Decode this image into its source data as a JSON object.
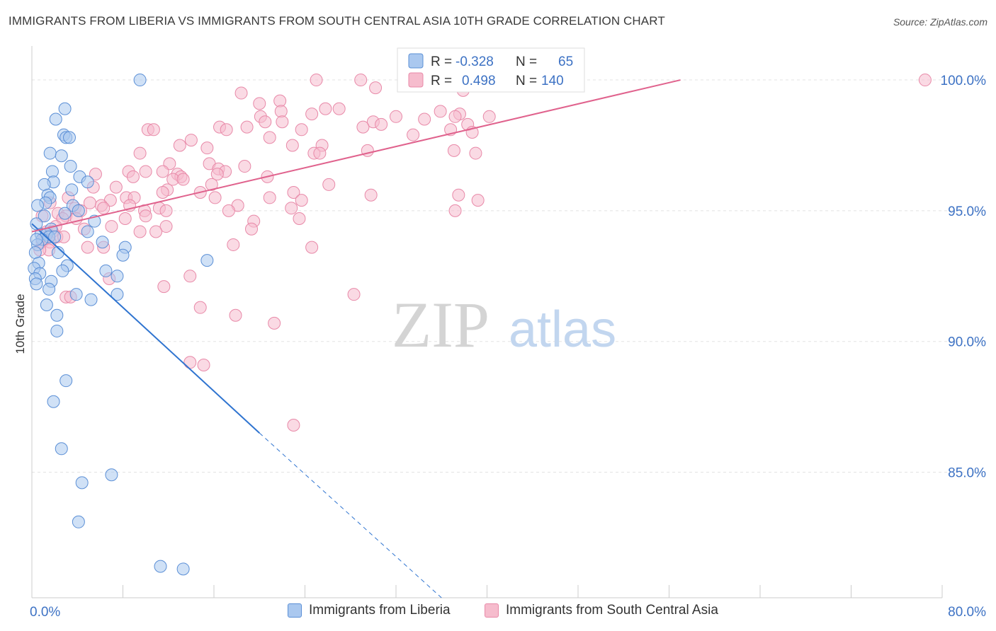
{
  "header": {
    "title": "IMMIGRANTS FROM LIBERIA VS IMMIGRANTS FROM SOUTH CENTRAL ASIA 10TH GRADE CORRELATION CHART",
    "source": "Source: ZipAtlas.com"
  },
  "watermark": {
    "zip": "ZIP",
    "atlas": "atlas"
  },
  "legend_top": {
    "rows": [
      {
        "r_label": "R =",
        "r_value": "-0.328",
        "n_label": "N =",
        "n_value": "65"
      },
      {
        "r_label": "R =",
        "r_value": "0.498",
        "n_label": "N =",
        "n_value": "140"
      }
    ]
  },
  "legend_bottom": {
    "items": [
      "Immigrants from Liberia",
      "Immigrants from South Central Asia"
    ]
  },
  "colors": {
    "liberia_fill": "#aac8ef",
    "liberia_stroke": "#5b8fd6",
    "liberia_line": "#2f74d0",
    "asia_fill": "#f6bccd",
    "asia_stroke": "#e889a8",
    "asia_line": "#e0628d",
    "axis_text": "#3d72c4",
    "grid": "#e3e3e3"
  },
  "chart_data": {
    "type": "scatter",
    "title": "IMMIGRANTS FROM LIBERIA VS IMMIGRANTS FROM SOUTH CENTRAL ASIA 10TH GRADE CORRELATION CHART",
    "xlabel": "",
    "ylabel": "10th Grade",
    "xlim": [
      0,
      80
    ],
    "ylim": [
      80.2,
      101.3
    ],
    "x_tick_labels": [
      "0.0%",
      "80.0%"
    ],
    "y_ticks": [
      85,
      90,
      95,
      100
    ],
    "y_tick_labels": [
      "85.0%",
      "90.0%",
      "95.0%",
      "100.0%"
    ],
    "grid": true,
    "legend_position": "top-center",
    "series": [
      {
        "name": "Immigrants from Liberia",
        "r": -0.328,
        "n": 65,
        "trend": {
          "x": [
            0,
            20
          ],
          "y": [
            94.5,
            86.5
          ],
          "dashed_to": [
            36,
            80.2
          ]
        },
        "points": [
          [
            9.5,
            100.0
          ],
          [
            2.9,
            98.9
          ],
          [
            2.1,
            98.5
          ],
          [
            2.8,
            97.9
          ],
          [
            3.0,
            97.8
          ],
          [
            3.3,
            97.8
          ],
          [
            1.6,
            97.2
          ],
          [
            2.6,
            97.1
          ],
          [
            3.4,
            96.7
          ],
          [
            1.8,
            96.5
          ],
          [
            4.2,
            96.3
          ],
          [
            1.9,
            96.1
          ],
          [
            4.9,
            96.1
          ],
          [
            1.1,
            96.0
          ],
          [
            3.5,
            95.8
          ],
          [
            1.4,
            95.6
          ],
          [
            1.6,
            95.5
          ],
          [
            1.2,
            95.3
          ],
          [
            0.5,
            95.2
          ],
          [
            3.6,
            95.2
          ],
          [
            4.1,
            95.0
          ],
          [
            2.9,
            94.9
          ],
          [
            1.1,
            94.8
          ],
          [
            5.5,
            94.6
          ],
          [
            0.4,
            94.5
          ],
          [
            1.7,
            94.3
          ],
          [
            4.9,
            94.2
          ],
          [
            0.8,
            94.1
          ],
          [
            1.3,
            94.1
          ],
          [
            1.5,
            94.0
          ],
          [
            2.0,
            94.0
          ],
          [
            0.9,
            93.9
          ],
          [
            6.2,
            93.8
          ],
          [
            0.5,
            93.7
          ],
          [
            8.2,
            93.6
          ],
          [
            0.3,
            93.4
          ],
          [
            2.3,
            93.4
          ],
          [
            8.0,
            93.3
          ],
          [
            15.4,
            93.1
          ],
          [
            0.6,
            93.0
          ],
          [
            3.1,
            92.9
          ],
          [
            0.2,
            92.8
          ],
          [
            2.7,
            92.7
          ],
          [
            6.5,
            92.7
          ],
          [
            0.7,
            92.6
          ],
          [
            7.5,
            92.5
          ],
          [
            0.3,
            92.4
          ],
          [
            1.7,
            92.3
          ],
          [
            0.4,
            92.2
          ],
          [
            1.5,
            92.0
          ],
          [
            3.9,
            91.8
          ],
          [
            7.5,
            91.8
          ],
          [
            5.2,
            91.6
          ],
          [
            1.3,
            91.4
          ],
          [
            2.2,
            91.0
          ],
          [
            2.2,
            90.4
          ],
          [
            3.0,
            88.5
          ],
          [
            1.9,
            87.7
          ],
          [
            2.6,
            85.9
          ],
          [
            7.0,
            84.9
          ],
          [
            4.4,
            84.6
          ],
          [
            4.1,
            83.1
          ],
          [
            11.3,
            81.4
          ],
          [
            13.3,
            81.3
          ],
          [
            0.4,
            93.9
          ]
        ]
      },
      {
        "name": "Immigrants from South Central Asia",
        "r": 0.498,
        "n": 140,
        "trend": {
          "x": [
            0,
            57
          ],
          "y": [
            94.2,
            100.0
          ]
        },
        "points": [
          [
            25.0,
            100.0
          ],
          [
            28.9,
            100.0
          ],
          [
            33.7,
            100.0
          ],
          [
            36.1,
            100.0
          ],
          [
            41.6,
            100.0
          ],
          [
            43.8,
            100.0
          ],
          [
            78.5,
            100.0
          ],
          [
            36.3,
            99.8
          ],
          [
            30.2,
            99.7
          ],
          [
            37.9,
            99.6
          ],
          [
            18.4,
            99.5
          ],
          [
            21.8,
            99.2
          ],
          [
            20.0,
            99.1
          ],
          [
            25.8,
            98.9
          ],
          [
            27.0,
            98.9
          ],
          [
            21.9,
            98.8
          ],
          [
            35.9,
            98.8
          ],
          [
            24.6,
            98.7
          ],
          [
            37.6,
            98.7
          ],
          [
            20.1,
            98.6
          ],
          [
            32.0,
            98.6
          ],
          [
            37.2,
            98.6
          ],
          [
            40.2,
            98.6
          ],
          [
            34.5,
            98.5
          ],
          [
            20.5,
            98.4
          ],
          [
            22.0,
            98.4
          ],
          [
            30.0,
            98.4
          ],
          [
            38.3,
            98.3
          ],
          [
            30.7,
            98.3
          ],
          [
            29.1,
            98.2
          ],
          [
            16.5,
            98.2
          ],
          [
            18.9,
            98.2
          ],
          [
            17.1,
            98.1
          ],
          [
            10.2,
            98.1
          ],
          [
            10.7,
            98.1
          ],
          [
            23.7,
            98.1
          ],
          [
            36.8,
            98.1
          ],
          [
            38.7,
            98.0
          ],
          [
            33.5,
            97.9
          ],
          [
            20.9,
            97.8
          ],
          [
            14.0,
            97.7
          ],
          [
            22.9,
            97.5
          ],
          [
            13.0,
            97.5
          ],
          [
            25.5,
            97.5
          ],
          [
            15.4,
            97.4
          ],
          [
            37.1,
            97.3
          ],
          [
            29.5,
            97.3
          ],
          [
            39.0,
            97.2
          ],
          [
            24.8,
            97.2
          ],
          [
            9.5,
            97.2
          ],
          [
            25.3,
            97.2
          ],
          [
            12.1,
            96.8
          ],
          [
            15.6,
            96.8
          ],
          [
            18.7,
            96.7
          ],
          [
            16.4,
            96.6
          ],
          [
            17.0,
            96.5
          ],
          [
            10.0,
            96.5
          ],
          [
            11.5,
            96.5
          ],
          [
            8.5,
            96.5
          ],
          [
            16.3,
            96.4
          ],
          [
            12.8,
            96.4
          ],
          [
            5.6,
            96.4
          ],
          [
            13.1,
            96.3
          ],
          [
            8.9,
            96.3
          ],
          [
            20.7,
            96.3
          ],
          [
            12.4,
            96.2
          ],
          [
            13.3,
            96.2
          ],
          [
            15.8,
            96.0
          ],
          [
            26.1,
            96.0
          ],
          [
            5.4,
            95.9
          ],
          [
            7.4,
            95.9
          ],
          [
            11.9,
            95.8
          ],
          [
            11.5,
            95.7
          ],
          [
            14.8,
            95.7
          ],
          [
            23.0,
            95.7
          ],
          [
            29.8,
            95.6
          ],
          [
            37.5,
            95.6
          ],
          [
            20.9,
            95.5
          ],
          [
            8.3,
            95.5
          ],
          [
            9.0,
            95.5
          ],
          [
            16.1,
            95.5
          ],
          [
            3.2,
            95.5
          ],
          [
            6.9,
            95.4
          ],
          [
            23.7,
            95.4
          ],
          [
            39.2,
            95.4
          ],
          [
            1.6,
            95.3
          ],
          [
            5.1,
            95.3
          ],
          [
            6.1,
            95.2
          ],
          [
            18.1,
            95.2
          ],
          [
            8.6,
            95.2
          ],
          [
            22.8,
            95.1
          ],
          [
            3.8,
            95.1
          ],
          [
            6.3,
            95.1
          ],
          [
            11.2,
            95.1
          ],
          [
            11.8,
            95.0
          ],
          [
            4.3,
            95.0
          ],
          [
            9.9,
            95.0
          ],
          [
            37.2,
            95.0
          ],
          [
            17.3,
            95.0
          ],
          [
            2.3,
            94.9
          ],
          [
            0.9,
            94.8
          ],
          [
            3.0,
            94.8
          ],
          [
            10.0,
            94.8
          ],
          [
            3.9,
            94.7
          ],
          [
            23.5,
            94.7
          ],
          [
            2.7,
            94.7
          ],
          [
            8.2,
            94.7
          ],
          [
            19.5,
            94.6
          ],
          [
            11.8,
            94.4
          ],
          [
            7.0,
            94.4
          ],
          [
            2.1,
            94.4
          ],
          [
            1.3,
            94.2
          ],
          [
            19.3,
            94.3
          ],
          [
            4.6,
            94.3
          ],
          [
            1.8,
            94.2
          ],
          [
            9.5,
            94.2
          ],
          [
            10.9,
            94.2
          ],
          [
            1.3,
            94.0
          ],
          [
            2.2,
            94.0
          ],
          [
            2.8,
            94.0
          ],
          [
            1.0,
            93.9
          ],
          [
            0.9,
            93.8
          ],
          [
            1.6,
            93.8
          ],
          [
            24.6,
            93.6
          ],
          [
            6.3,
            93.6
          ],
          [
            17.7,
            93.7
          ],
          [
            4.9,
            93.6
          ],
          [
            1.5,
            93.5
          ],
          [
            0.7,
            93.5
          ],
          [
            6.8,
            92.4
          ],
          [
            13.9,
            92.5
          ],
          [
            11.6,
            92.1
          ],
          [
            28.3,
            91.8
          ],
          [
            3.0,
            91.7
          ],
          [
            3.4,
            91.7
          ],
          [
            14.8,
            91.3
          ],
          [
            17.9,
            91.0
          ],
          [
            21.3,
            90.7
          ],
          [
            13.9,
            89.2
          ],
          [
            15.1,
            89.1
          ],
          [
            23.0,
            86.8
          ]
        ]
      }
    ]
  }
}
